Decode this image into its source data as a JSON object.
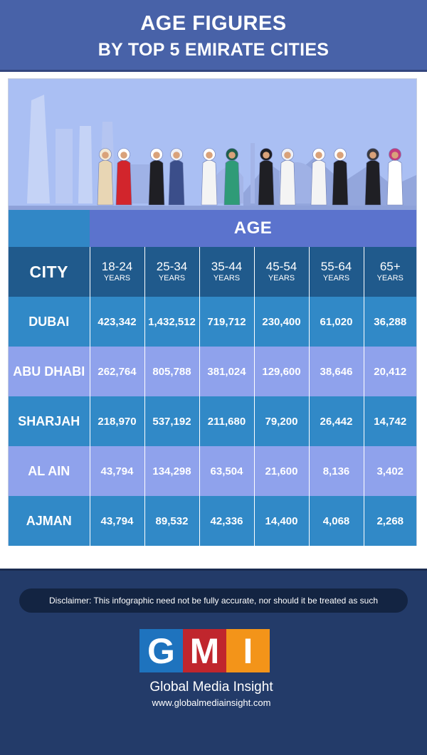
{
  "header": {
    "title_line1": "AGE FIGURES",
    "title_line2": "BY TOP 5 EMIRATE CITIES"
  },
  "colors": {
    "header_bg": "#4862a8",
    "age_band": "#5b73cd",
    "table_head": "#205a8c",
    "row_dark": "#3189c7",
    "row_light": "#8fa2ec",
    "footer_bg": "#233b69",
    "logo_blue": "#1e73be",
    "logo_red": "#c0262d",
    "logo_orange": "#f39419"
  },
  "chart_data": {
    "type": "table",
    "title": "AGE FIGURES BY TOP 5 EMIRATE CITIES",
    "group_header": "AGE",
    "row_header": "CITY",
    "columns": [
      {
        "range": "18-24",
        "unit": "YEARS"
      },
      {
        "range": "25-34",
        "unit": "YEARS"
      },
      {
        "range": "35-44",
        "unit": "YEARS"
      },
      {
        "range": "45-54",
        "unit": "YEARS"
      },
      {
        "range": "55-64",
        "unit": "YEARS"
      },
      {
        "range": "65+",
        "unit": "YEARS"
      }
    ],
    "rows": [
      {
        "city": "DUBAI",
        "values": [
          "423,342",
          "1,432,512",
          "719,712",
          "230,400",
          "61,020",
          "36,288"
        ]
      },
      {
        "city": "ABU DHABI",
        "values": [
          "262,764",
          "805,788",
          "381,024",
          "129,600",
          "38,646",
          "20,412"
        ]
      },
      {
        "city": "SHARJAH",
        "values": [
          "218,970",
          "537,192",
          "211,680",
          "79,200",
          "26,442",
          "14,742"
        ]
      },
      {
        "city": "AL AIN",
        "values": [
          "43,794",
          "134,298",
          "63,504",
          "21,600",
          "8,136",
          "3,402"
        ]
      },
      {
        "city": "AJMAN",
        "values": [
          "43,794",
          "89,532",
          "42,336",
          "14,400",
          "4,068",
          "2,268"
        ]
      }
    ]
  },
  "footer": {
    "disclaimer": "Disclaimer: This infographic need not be fully accurate, nor should it be treated as such",
    "logo_letters": [
      "G",
      "M",
      "I"
    ],
    "org_name": "Global Media Insight",
    "url": "www.globalmediainsight.com"
  }
}
